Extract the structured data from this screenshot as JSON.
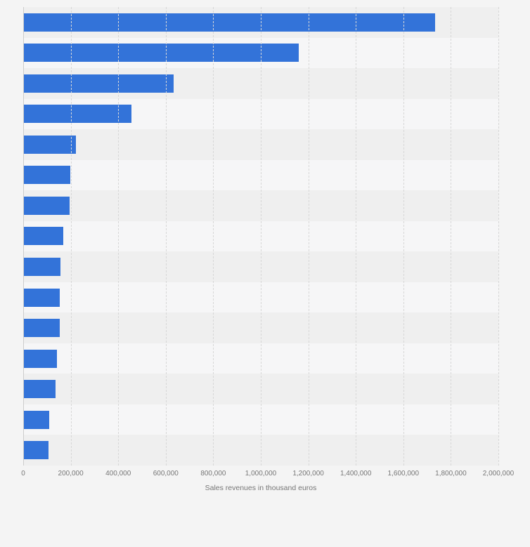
{
  "page": {
    "background": "#f4f4f4"
  },
  "chart_data": {
    "type": "bar",
    "orientation": "horizontal",
    "title": "",
    "xlabel": "Sales revenues in thousand euros",
    "ylabel": "",
    "categories": [
      "",
      "",
      "",
      "",
      "",
      "",
      "",
      "",
      "",
      "",
      "",
      "",
      "",
      "",
      ""
    ],
    "y_axis_labels_visible": false,
    "values": [
      1735000,
      1160000,
      633000,
      455000,
      222000,
      198000,
      195000,
      168000,
      157000,
      154000,
      153000,
      142000,
      136000,
      110000,
      107000
    ],
    "xlim": [
      0,
      2000000
    ],
    "x_ticks": [
      0,
      200000,
      400000,
      600000,
      800000,
      1000000,
      1200000,
      1400000,
      1600000,
      1800000,
      2000000
    ],
    "x_tick_labels": [
      "0",
      "200,000",
      "400,000",
      "600,000",
      "800,000",
      "1,000,000",
      "1,200,000",
      "1,400,000",
      "1,600,000",
      "1,800,000",
      "2,000,000"
    ],
    "legend": "none",
    "grid": "vertical-dashed",
    "bar_color": "#3373d9",
    "row_stripe_colors": [
      "#efefef",
      "#f6f6f7"
    ],
    "grid_color": "#d7d7d7",
    "tick_label_color": "#767676"
  }
}
